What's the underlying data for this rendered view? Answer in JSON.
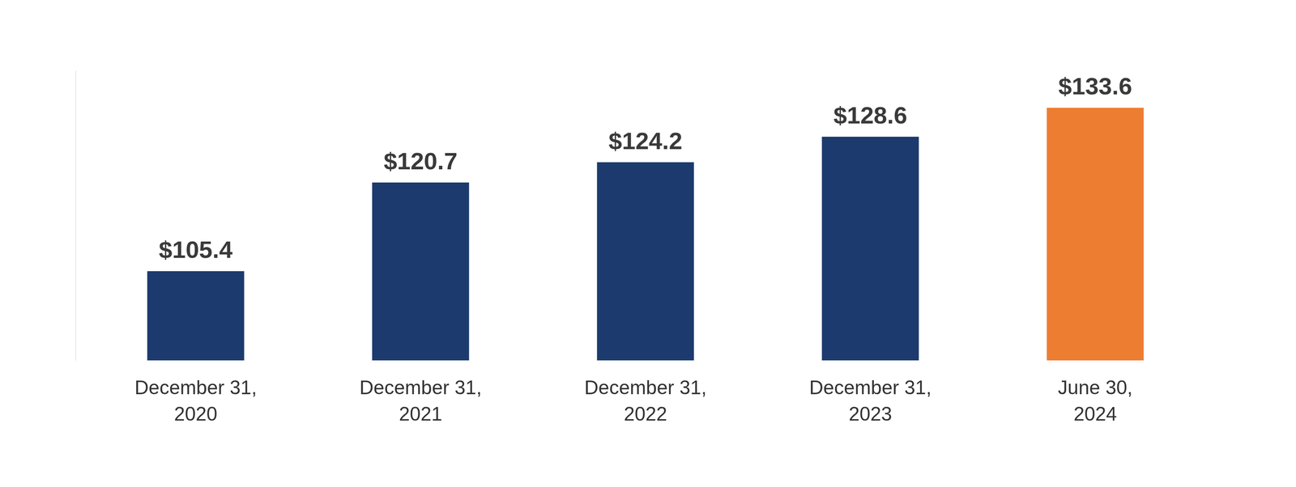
{
  "chart_data": {
    "type": "bar",
    "categories": [
      "December 31, 2020",
      "December 31, 2021",
      "December 31, 2022",
      "December 31, 2023",
      "June 30, 2024"
    ],
    "values": [
      105.4,
      120.7,
      124.2,
      128.6,
      133.6
    ],
    "value_labels": [
      "$105.4",
      "$120.7",
      "$124.2",
      "$128.6",
      "$133.6"
    ],
    "colors": [
      "#1c3a6d",
      "#1c3a6d",
      "#1c3a6d",
      "#1c3a6d",
      "#ed7d31"
    ],
    "ylim": [
      90,
      140
    ],
    "data_labels": true,
    "tick_labels": "x",
    "grid": false
  }
}
